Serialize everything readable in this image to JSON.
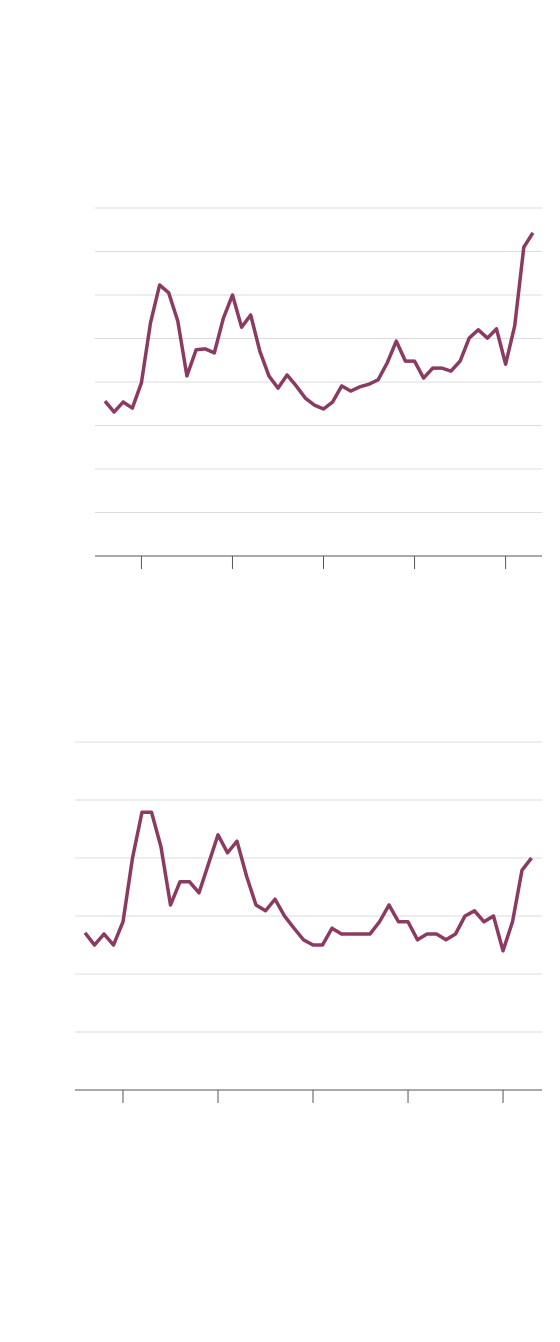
{
  "chart_data": [
    {
      "type": "line",
      "color": "#8b3a62",
      "grid": true,
      "x": [
        0,
        1,
        2,
        3,
        4,
        5,
        6,
        7,
        8,
        9,
        10,
        11,
        12,
        13,
        14,
        15,
        16,
        17,
        18,
        19,
        20,
        21,
        22,
        23,
        24,
        25,
        26,
        27,
        28,
        29,
        30,
        31,
        32,
        33,
        34,
        35,
        36,
        37,
        38,
        39,
        40,
        41,
        42,
        43,
        44,
        45,
        46,
        47
      ],
      "values": [
        3.56,
        3.31,
        3.54,
        3.4,
        3.98,
        5.36,
        6.23,
        6.05,
        5.4,
        4.14,
        4.74,
        4.76,
        4.67,
        5.47,
        6.0,
        5.26,
        5.54,
        4.71,
        4.14,
        3.86,
        4.16,
        3.91,
        3.63,
        3.47,
        3.38,
        3.54,
        3.91,
        3.79,
        3.89,
        3.95,
        4.05,
        4.44,
        4.94,
        4.48,
        4.48,
        4.09,
        4.32,
        4.32,
        4.25,
        4.48,
        5.01,
        5.2,
        5.01,
        5.22,
        4.41,
        5.29,
        7.1,
        7.43
      ],
      "xlim": [
        -1.1,
        48
      ],
      "xticks": [
        4,
        14,
        24,
        34,
        44
      ],
      "ylim": [
        0,
        8
      ],
      "yticks": [
        0,
        1,
        2,
        3,
        4,
        5,
        6,
        7,
        8
      ]
    },
    {
      "type": "line",
      "color": "#8b3a62",
      "grid": true,
      "x": [
        0,
        1,
        2,
        3,
        4,
        5,
        6,
        7,
        8,
        9,
        10,
        11,
        12,
        13,
        14,
        15,
        16,
        17,
        18,
        19,
        20,
        21,
        22,
        23,
        24,
        25,
        26,
        27,
        28,
        29,
        30,
        31,
        32,
        33,
        34,
        35,
        36,
        37,
        38,
        39,
        40,
        41,
        42,
        43,
        44,
        45,
        46,
        47
      ],
      "values": [
        2.71,
        2.5,
        2.69,
        2.5,
        2.9,
        4.0,
        4.79,
        4.79,
        4.19,
        3.19,
        3.59,
        3.59,
        3.4,
        3.9,
        4.4,
        4.09,
        4.29,
        3.69,
        3.19,
        3.09,
        3.29,
        3.0,
        2.79,
        2.59,
        2.5,
        2.5,
        2.79,
        2.69,
        2.69,
        2.69,
        2.69,
        2.9,
        3.19,
        2.9,
        2.9,
        2.59,
        2.69,
        2.69,
        2.59,
        2.69,
        3.0,
        3.09,
        2.9,
        3.0,
        2.4,
        2.9,
        3.79,
        4.0
      ],
      "xlim": [
        -1.05,
        48.1
      ],
      "xticks": [
        4,
        14,
        24,
        34,
        44
      ],
      "ylim": [
        0,
        6
      ],
      "yticks": [
        0,
        1,
        2,
        3,
        4,
        5,
        6
      ]
    }
  ]
}
